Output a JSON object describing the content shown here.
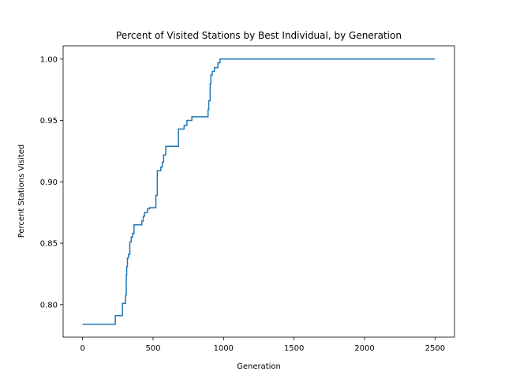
{
  "chart_data": {
    "type": "line",
    "title": "Percent of Visited Stations by Best Individual, by Generation",
    "xlabel": "Generation",
    "ylabel": "Percent Stations Visited",
    "xlim": [
      -138,
      2638
    ],
    "ylim": [
      0.7735,
      1.0108
    ],
    "xticks": [
      0,
      500,
      1000,
      1500,
      2000,
      2500
    ],
    "xtick_labels": [
      "0",
      "500",
      "1000",
      "1500",
      "2000",
      "2500"
    ],
    "yticks": [
      0.8,
      0.85,
      0.9,
      0.95,
      1.0
    ],
    "ytick_labels": [
      "0.80",
      "0.85",
      "0.90",
      "0.95",
      "1.00"
    ],
    "grid": false,
    "legend": "none",
    "line_color": "#1f77b4",
    "step": true,
    "series": [
      {
        "x": [
          0,
          232,
          283,
          305,
          310,
          313,
          318,
          325,
          335,
          345,
          355,
          365,
          380,
          420,
          430,
          440,
          460,
          475,
          520,
          530,
          535,
          545,
          555,
          565,
          575,
          590,
          680,
          720,
          740,
          775,
          890,
          895,
          905,
          910,
          920,
          935,
          960,
          975,
          2499
        ],
        "values": [
          0.784,
          0.791,
          0.801,
          0.808,
          0.824,
          0.831,
          0.838,
          0.841,
          0.851,
          0.855,
          0.858,
          0.865,
          0.865,
          0.868,
          0.872,
          0.875,
          0.878,
          0.879,
          0.889,
          0.909,
          0.909,
          0.909,
          0.912,
          0.916,
          0.922,
          0.929,
          0.943,
          0.946,
          0.95,
          0.953,
          0.959,
          0.966,
          0.98,
          0.987,
          0.99,
          0.993,
          0.997,
          1.0,
          1.0
        ]
      }
    ]
  }
}
